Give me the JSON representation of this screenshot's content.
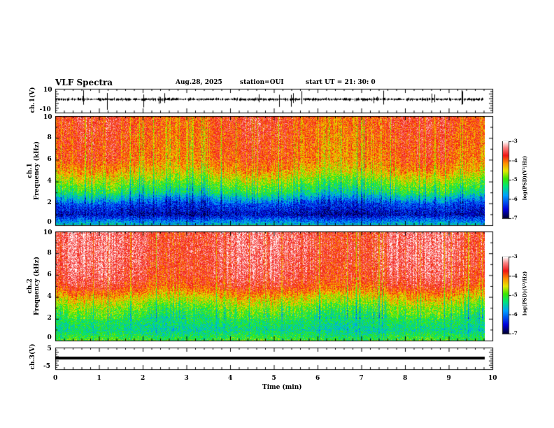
{
  "header": {
    "title": "VLF Spectra",
    "date": "Aug.28, 2025",
    "station": "station=OUI",
    "start": "start  UT =   21: 30: 0"
  },
  "colors": {
    "trace": "#000000",
    "background": "#ffffff"
  },
  "chart_data": [
    {
      "type": "line",
      "name": "ch1-waveform",
      "ylabel": "ch.1(V)",
      "ylim": [
        -10,
        10
      ],
      "yticks": [
        "10",
        "-10"
      ],
      "xlim": [
        0,
        10
      ],
      "description_values": {
        "baseline": 0,
        "typical_amplitude": 1.5,
        "spike_max": 10
      }
    },
    {
      "type": "heatmap",
      "name": "ch1-spectrogram",
      "ylabel": "ch.1\nFrequency (kHz)",
      "ylabel_lines": [
        "ch.1",
        "Frequency  (kHz)"
      ],
      "ylim": [
        0,
        10
      ],
      "yticks": [
        "0",
        "2",
        "4",
        "6",
        "8",
        "10"
      ],
      "xlim": [
        0,
        9.83
      ],
      "colorbar": {
        "label": "log(PSD)(V²/Hz)",
        "range": [
          -7,
          -3
        ],
        "ticks": [
          "-3",
          "-4",
          "-5",
          "-6",
          "-7"
        ]
      },
      "profile_freq_khz": [
        0,
        1,
        2,
        3,
        4,
        5,
        6,
        8,
        10
      ],
      "profile_logpsd": [
        -5.5,
        -6.6,
        -6.2,
        -5.3,
        -4.8,
        -4.3,
        -4.0,
        -3.9,
        -3.8
      ]
    },
    {
      "type": "heatmap",
      "name": "ch2-spectrogram",
      "ylabel_lines": [
        "ch.2",
        "Frequency  (kHz)"
      ],
      "ylim": [
        0,
        10
      ],
      "yticks": [
        "0",
        "2",
        "4",
        "6",
        "8",
        "10"
      ],
      "xlim": [
        0,
        9.83
      ],
      "colorbar": {
        "label": "log(PSD)(V²/Hz)",
        "range": [
          -7,
          -3
        ],
        "ticks": [
          "-3",
          "-4",
          "-5",
          "-6",
          "-7"
        ]
      },
      "profile_freq_khz": [
        0,
        1,
        2,
        3,
        4,
        5,
        6,
        8,
        10
      ],
      "profile_logpsd": [
        -5.0,
        -5.4,
        -5.2,
        -4.9,
        -4.4,
        -3.8,
        -3.6,
        -3.5,
        -3.5
      ]
    },
    {
      "type": "line",
      "name": "ch3-waveform",
      "ylabel": "ch.3(V)",
      "ylim": [
        -5,
        5
      ],
      "yticks": [
        "5",
        "-5"
      ],
      "xlim": [
        0,
        10
      ],
      "values_constant": 0
    }
  ],
  "xaxis": {
    "label": "Time  (min)",
    "ticks": [
      "0",
      "1",
      "2",
      "3",
      "4",
      "5",
      "6",
      "7",
      "8",
      "9",
      "10"
    ],
    "range": [
      0,
      10
    ]
  }
}
